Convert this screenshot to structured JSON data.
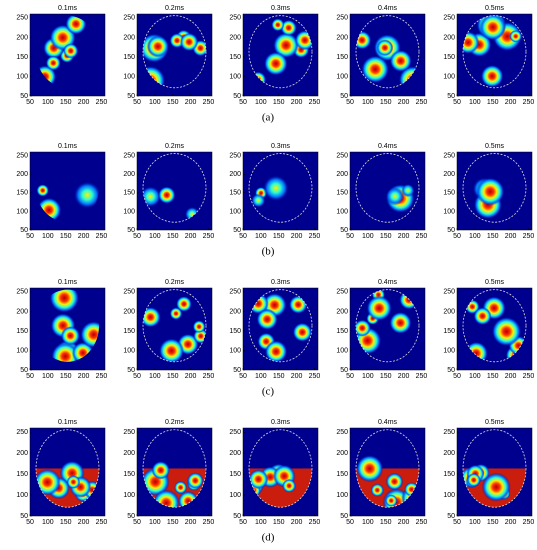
{
  "figure": {
    "xlim": [
      50,
      260
    ],
    "ylim": [
      50,
      260
    ],
    "xticks": [
      50,
      100,
      150,
      200,
      250
    ],
    "yticks": [
      50,
      100,
      150,
      200,
      250
    ],
    "rows": [
      {
        "label": "(a)",
        "panels": [
          {
            "title": "0.1ms"
          },
          {
            "title": "0.2ms"
          },
          {
            "title": "0.3ms"
          },
          {
            "title": "0.4ms"
          },
          {
            "title": "0.5ms"
          }
        ]
      },
      {
        "label": "(b)",
        "panels": [
          {
            "title": "0.1ms"
          },
          {
            "title": "0.2ms"
          },
          {
            "title": "0.3ms"
          },
          {
            "title": "0.4ms"
          },
          {
            "title": "0.5ms"
          }
        ]
      },
      {
        "label": "(c)",
        "panels": [
          {
            "title": "0.1ms"
          },
          {
            "title": "0.2ms"
          },
          {
            "title": "0.3ms"
          },
          {
            "title": "0.4ms"
          },
          {
            "title": "0.5ms"
          }
        ]
      },
      {
        "label": "(d)",
        "panels": [
          {
            "title": "0.1ms"
          },
          {
            "title": "0.2ms"
          },
          {
            "title": "0.3ms"
          },
          {
            "title": "0.4ms"
          },
          {
            "title": "0.5ms"
          }
        ]
      }
    ]
  }
}
